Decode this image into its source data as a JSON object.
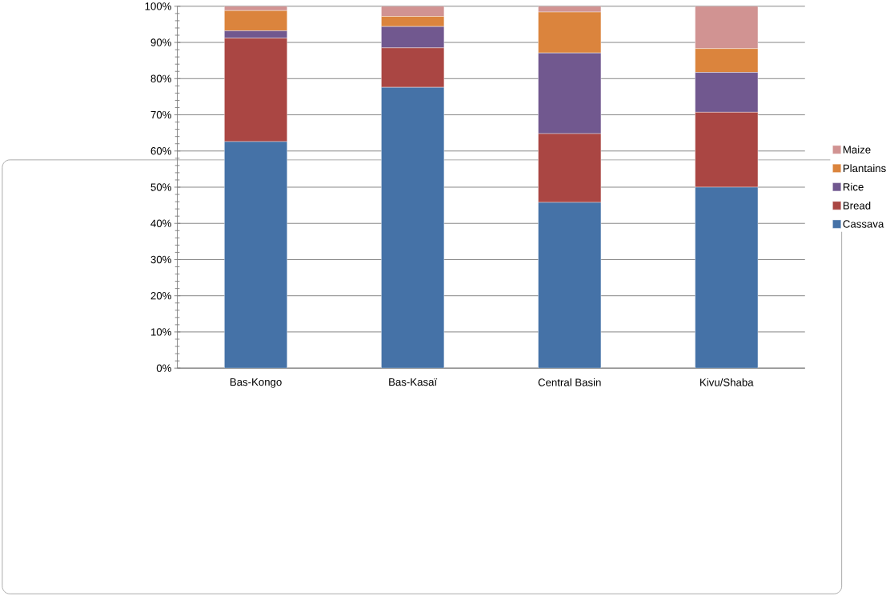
{
  "chart_data": {
    "type": "bar",
    "stacked": true,
    "categories": [
      "Bas-Kongo",
      "Bas-Kasaï",
      "Central Basin",
      "Kivu/Shaba"
    ],
    "series": [
      {
        "name": "Cassava",
        "color": "#4572a7",
        "values": [
          62.6,
          77.6,
          45.8,
          50.0
        ]
      },
      {
        "name": "Bread",
        "color": "#aa4643",
        "values": [
          28.6,
          10.9,
          19.0,
          20.7
        ]
      },
      {
        "name": "Rice",
        "color": "#71588f",
        "values": [
          2.0,
          5.9,
          22.3,
          11.0
        ]
      },
      {
        "name": "Plantains",
        "color": "#db843d",
        "values": [
          5.6,
          2.8,
          11.3,
          6.6
        ]
      },
      {
        "name": "Maize",
        "color": "#d19392",
        "values": [
          1.2,
          2.8,
          1.6,
          11.7
        ]
      }
    ],
    "ylim": [
      0,
      100
    ],
    "yticks": [
      {
        "value": 0,
        "label": "0%"
      },
      {
        "value": 10,
        "label": "10%"
      },
      {
        "value": 20,
        "label": "20%"
      },
      {
        "value": 30,
        "label": "30%"
      },
      {
        "value": 40,
        "label": "40%"
      },
      {
        "value": 50,
        "label": "50%"
      },
      {
        "value": 60,
        "label": "60%"
      },
      {
        "value": 70,
        "label": "70%"
      },
      {
        "value": 80,
        "label": "80%"
      },
      {
        "value": 90,
        "label": "90%"
      },
      {
        "value": 100,
        "label": "100%"
      }
    ],
    "grid": "y",
    "legend": "right"
  }
}
